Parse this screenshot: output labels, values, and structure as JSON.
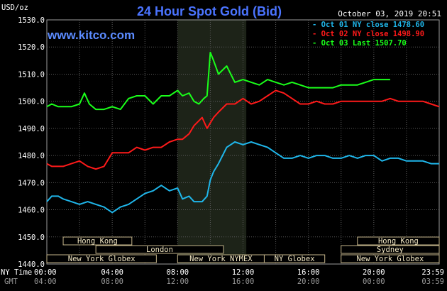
{
  "chart_data": {
    "type": "line",
    "title": "24 Hour Spot Gold (Bid)",
    "ylabel": "USD/oz",
    "website": "www.kitco.com",
    "timestamp": "October 03, 2019 20:51",
    "ylim": [
      1440,
      1530
    ],
    "yticks": [
      "1440.0",
      "1450.0",
      "1460.0",
      "1470.0",
      "1480.0",
      "1490.0",
      "1500.0",
      "1510.0",
      "1520.0",
      "1530.0"
    ],
    "x_time_label": "NY Time",
    "x_gmt_label": "GMT",
    "x_ticks_ny": [
      "00:00",
      "04:00",
      "08:00",
      "12:00",
      "16:00",
      "20:00",
      "23:59"
    ],
    "x_ticks_gmt": [
      "04:00",
      "08:00",
      "12:00",
      "16:00",
      "20:00",
      "00:00",
      "03:59"
    ],
    "xlim_hours": [
      0,
      24
    ],
    "shaded_hours": [
      8.0,
      12.2
    ],
    "grid": true,
    "legend_position": "top-right",
    "sessions": [
      {
        "label": "Hong Kong",
        "start": 1.0,
        "end": 5.2
      },
      {
        "label": "London",
        "start": 3.0,
        "end": 10.8
      },
      {
        "label": "New York Globex",
        "start": 0.0,
        "end": 6.7
      },
      {
        "label": "New York NYMEX",
        "start": 8.0,
        "end": 13.3
      },
      {
        "label": "NY Globex",
        "start": 13.3,
        "end": 17.0
      },
      {
        "label": "Hong Kong",
        "start": 19.0,
        "end": 24.0
      },
      {
        "label": "Sydney",
        "start": 18.0,
        "end": 24.0
      },
      {
        "label": "New York Globex",
        "start": 18.0,
        "end": 24.0
      }
    ],
    "series": [
      {
        "name": "Oct 01 NY close 1478.60",
        "color": "#1fb6ea",
        "x": [
          0,
          0.3,
          0.7,
          1.0,
          1.5,
          2.0,
          2.5,
          3.0,
          3.5,
          4.0,
          4.5,
          5.0,
          5.5,
          6.0,
          6.5,
          7.0,
          7.5,
          8.0,
          8.3,
          8.7,
          9.0,
          9.5,
          9.8,
          10.0,
          10.2,
          10.5,
          11.0,
          11.5,
          12.0,
          12.5,
          13.0,
          13.5,
          14.0,
          14.5,
          15.0,
          15.5,
          16.0,
          16.5,
          17.0,
          17.5,
          18.0,
          18.5,
          19.0,
          19.5,
          20.0,
          20.5,
          21.0,
          21.5,
          22.0,
          22.5,
          23.0,
          23.5,
          24.0
        ],
        "y": [
          1463,
          1465,
          1465,
          1464,
          1463,
          1462,
          1463,
          1462,
          1461,
          1459,
          1461,
          1462,
          1464,
          1466,
          1467,
          1469,
          1467,
          1468,
          1464,
          1465,
          1463,
          1463,
          1465,
          1471,
          1474,
          1477,
          1483,
          1485,
          1484,
          1485,
          1484,
          1483,
          1481,
          1479,
          1479,
          1480,
          1479,
          1480,
          1480,
          1479,
          1479,
          1480,
          1479,
          1480,
          1480,
          1478,
          1479,
          1479,
          1478,
          1478,
          1478,
          1477,
          1477
        ]
      },
      {
        "name": "Oct 02 NY close 1498.90",
        "color": "#ff1a1a",
        "x": [
          0,
          0.3,
          0.7,
          1.0,
          1.5,
          2.0,
          2.5,
          3.0,
          3.5,
          4.0,
          4.5,
          5.0,
          5.5,
          6.0,
          6.5,
          7.0,
          7.5,
          8.0,
          8.3,
          8.7,
          9.0,
          9.5,
          9.8,
          10.0,
          10.2,
          10.5,
          11.0,
          11.5,
          12.0,
          12.5,
          13.0,
          13.5,
          14.0,
          14.5,
          15.0,
          15.5,
          16.0,
          16.5,
          17.0,
          17.5,
          18.0,
          18.5,
          19.0,
          19.5,
          20.0,
          20.5,
          21.0,
          21.5,
          22.0,
          22.5,
          23.0,
          23.5,
          24.0
        ],
        "y": [
          1477,
          1476,
          1476,
          1476,
          1477,
          1478,
          1476,
          1475,
          1476,
          1481,
          1481,
          1481,
          1483,
          1482,
          1483,
          1483,
          1485,
          1486,
          1486,
          1488,
          1491,
          1494,
          1490,
          1492,
          1494,
          1496,
          1499,
          1499,
          1501,
          1499,
          1500,
          1502,
          1504,
          1503,
          1501,
          1499,
          1499,
          1500,
          1499,
          1499,
          1500,
          1500,
          1500,
          1500,
          1500,
          1500,
          1501,
          1500,
          1500,
          1500,
          1500,
          1499,
          1498
        ]
      },
      {
        "name": "Oct 03 Last 1507.70",
        "color": "#1aff1a",
        "x": [
          0,
          0.3,
          0.7,
          1.0,
          1.5,
          2.0,
          2.3,
          2.6,
          3.0,
          3.5,
          4.0,
          4.5,
          5.0,
          5.5,
          6.0,
          6.5,
          7.0,
          7.5,
          8.0,
          8.3,
          8.7,
          9.0,
          9.3,
          9.6,
          9.8,
          10.0,
          10.2,
          10.5,
          11.0,
          11.5,
          12.0,
          12.5,
          13.0,
          13.5,
          14.0,
          14.5,
          15.0,
          15.5,
          16.0,
          16.5,
          17.0,
          17.5,
          18.0,
          18.5,
          19.0,
          19.5,
          20.0,
          20.5,
          21.0
        ],
        "y": [
          1498,
          1499,
          1498,
          1498,
          1498,
          1499,
          1503,
          1499,
          1497,
          1497,
          1498,
          1497,
          1501,
          1502,
          1502,
          1499,
          1502,
          1502,
          1504,
          1502,
          1503,
          1500,
          1499,
          1501,
          1502,
          1518,
          1515,
          1510,
          1513,
          1507,
          1508,
          1507,
          1506,
          1508,
          1507,
          1506,
          1507,
          1506,
          1505,
          1505,
          1505,
          1505,
          1506,
          1506,
          1506,
          1507,
          1508,
          1508,
          1508
        ]
      }
    ]
  }
}
